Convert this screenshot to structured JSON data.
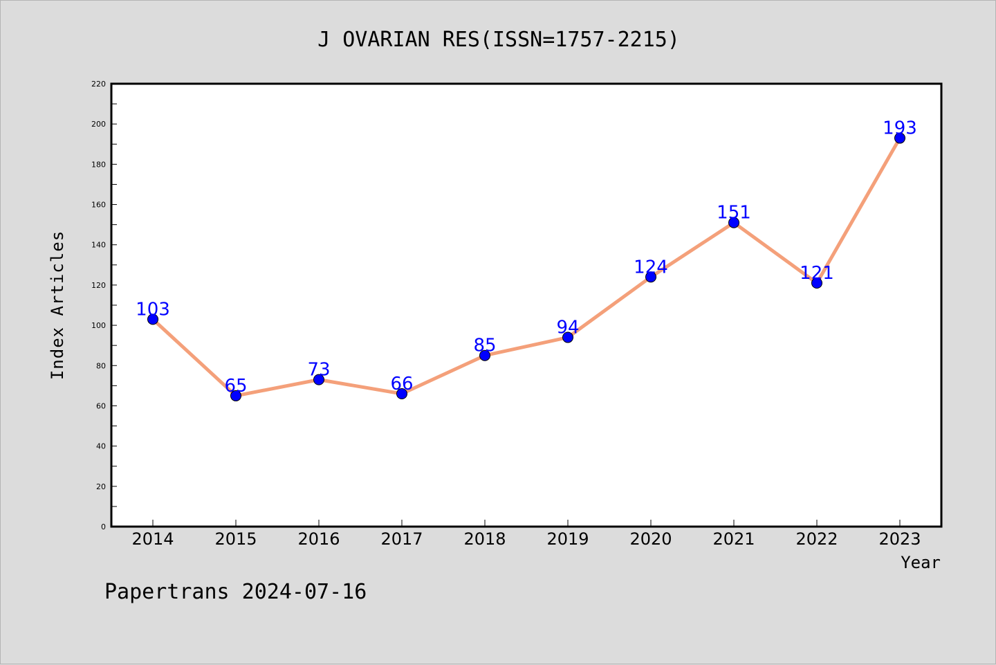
{
  "chart_data": {
    "type": "line",
    "title": "J OVARIAN RES(ISSN=1757-2215)",
    "xlabel": "Year",
    "ylabel": "Index Articles",
    "categories": [
      "2014",
      "2015",
      "2016",
      "2017",
      "2018",
      "2019",
      "2020",
      "2021",
      "2022",
      "2023"
    ],
    "values": [
      103,
      65,
      73,
      66,
      85,
      94,
      124,
      151,
      121,
      193
    ],
    "ylim": [
      0,
      220
    ],
    "yticks": [
      0,
      20,
      40,
      60,
      80,
      100,
      120,
      140,
      160,
      180,
      200,
      220
    ],
    "grid": false,
    "line_color": "#f4a07a",
    "marker_color": "#0000ff",
    "label_color": "#0000ff",
    "plot_background": "#ffffff",
    "figure_background": "#dcdcdc"
  },
  "footer": "Papertrans 2024-07-16"
}
